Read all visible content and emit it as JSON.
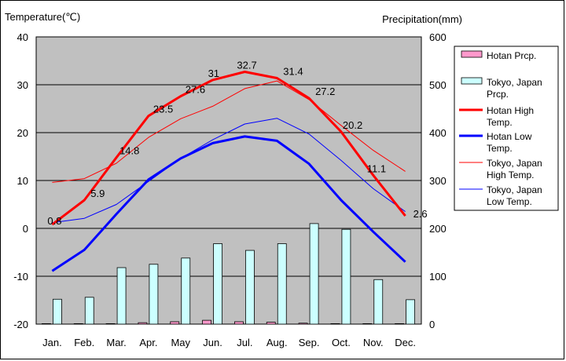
{
  "chart_data": {
    "type": "bar+line",
    "categories": [
      "Jan.",
      "Feb.",
      "Mar.",
      "Apr.",
      "May",
      "Jun.",
      "Jul.",
      "Aug.",
      "Sep.",
      "Oct.",
      "Nov.",
      "Dec."
    ],
    "left_axis": {
      "title": "Temperature(℃)",
      "ylim": [
        -20,
        40
      ],
      "ticks": [
        -20,
        -10,
        0,
        10,
        20,
        30,
        40
      ],
      "tick_labels": [
        "-20",
        "-10",
        "0",
        "10",
        "20",
        "30",
        "40"
      ]
    },
    "right_axis": {
      "title": "Precipitation(mm)",
      "ylim": [
        0,
        600
      ],
      "ticks": [
        0,
        100,
        200,
        300,
        400,
        500,
        600
      ],
      "tick_labels": [
        "0",
        "100",
        "200",
        "300",
        "400",
        "500",
        "600"
      ]
    },
    "grid": true,
    "legend": {
      "placement": "right"
    },
    "bar_series": [
      {
        "name": "Hotan Prcp.",
        "color": "#ff99cc",
        "values": [
          1,
          1,
          1,
          3,
          5,
          8,
          5,
          4,
          2,
          1,
          1,
          1
        ]
      },
      {
        "name": "Tokyo, Japan Prcp.",
        "color": "#ccffff",
        "values": [
          52,
          56,
          118,
          125,
          138,
          168,
          154,
          168,
          210,
          198,
          93,
          51
        ]
      }
    ],
    "line_series": [
      {
        "name": "Hotan High Temp.",
        "color": "#ff0000",
        "width": "thick",
        "values": [
          0.8,
          5.9,
          14.8,
          23.5,
          27.6,
          31,
          32.7,
          31.4,
          27.2,
          20.2,
          11.1,
          2.6
        ],
        "labels": [
          "0.8",
          "5.9",
          "14.8",
          "23.5",
          "27.6",
          "31",
          "32.7",
          "31.4",
          "27.2",
          "20.2",
          "11.1",
          "2.6"
        ]
      },
      {
        "name": "Hotan Low Temp.",
        "color": "#0000ff",
        "width": "thick",
        "values": [
          -8.9,
          -4.5,
          3.0,
          10.2,
          14.6,
          17.8,
          19.2,
          18.3,
          13.5,
          5.9,
          -0.7,
          -7.0
        ]
      },
      {
        "name": "Tokyo, Japan High Temp.",
        "color": "#ff0000",
        "width": "thin",
        "values": [
          9.6,
          10.4,
          13.6,
          19.0,
          22.9,
          25.5,
          29.2,
          30.8,
          26.9,
          21.5,
          16.3,
          11.9
        ]
      },
      {
        "name": "Tokyo, Japan Low Temp.",
        "color": "#0000ff",
        "width": "thin",
        "values": [
          1.2,
          2.1,
          5.0,
          9.8,
          14.6,
          18.5,
          21.8,
          23.0,
          19.7,
          14.2,
          8.3,
          3.5
        ]
      }
    ],
    "legend_entries": [
      {
        "lines": [
          "Hotan Prcp."
        ],
        "kind": "box",
        "color": "#ff99cc"
      },
      {
        "lines": [
          "Tokyo, Japan",
          "Prcp."
        ],
        "kind": "box",
        "color": "#ccffff"
      },
      {
        "lines": [
          "Hotan High",
          "Temp."
        ],
        "kind": "line",
        "color": "#ff0000",
        "width": "thick"
      },
      {
        "lines": [
          "Hotan Low",
          "Temp."
        ],
        "kind": "line",
        "color": "#0000ff",
        "width": "thick"
      },
      {
        "lines": [
          "Tokyo, Japan",
          "High Temp."
        ],
        "kind": "line",
        "color": "#ff0000",
        "width": "thin"
      },
      {
        "lines": [
          "Tokyo, Japan",
          "Low Temp."
        ],
        "kind": "line",
        "color": "#0000ff",
        "width": "thin"
      }
    ]
  }
}
